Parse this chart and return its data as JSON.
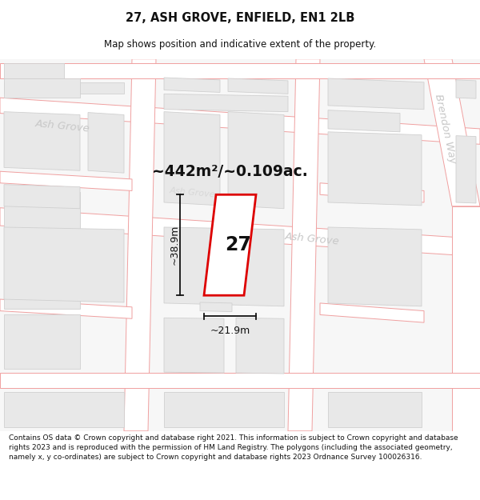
{
  "title": "27, ASH GROVE, ENFIELD, EN1 2LB",
  "subtitle": "Map shows position and indicative extent of the property.",
  "footer": "Contains OS data © Crown copyright and database right 2021. This information is subject to Crown copyright and database rights 2023 and is reproduced with the permission of HM Land Registry. The polygons (including the associated geometry, namely x, y co-ordinates) are subject to Crown copyright and database rights 2023 Ordnance Survey 100026316.",
  "area_label": "~442m²/~0.109ac.",
  "width_label": "~21.9m",
  "height_label": "~38.9m",
  "plot_number": "27",
  "map_bg": "#f7f7f7",
  "road_fill": "#ffffff",
  "road_stroke": "#f0a0a0",
  "building_fill": "#e8e8e8",
  "building_stroke": "#d0d0d0",
  "plot_stroke": "#dd0000",
  "plot_fill": "#ffffff",
  "dim_color": "#111111",
  "title_color": "#111111",
  "street_label_color": "#c8c8c8",
  "area_label_color": "#111111"
}
